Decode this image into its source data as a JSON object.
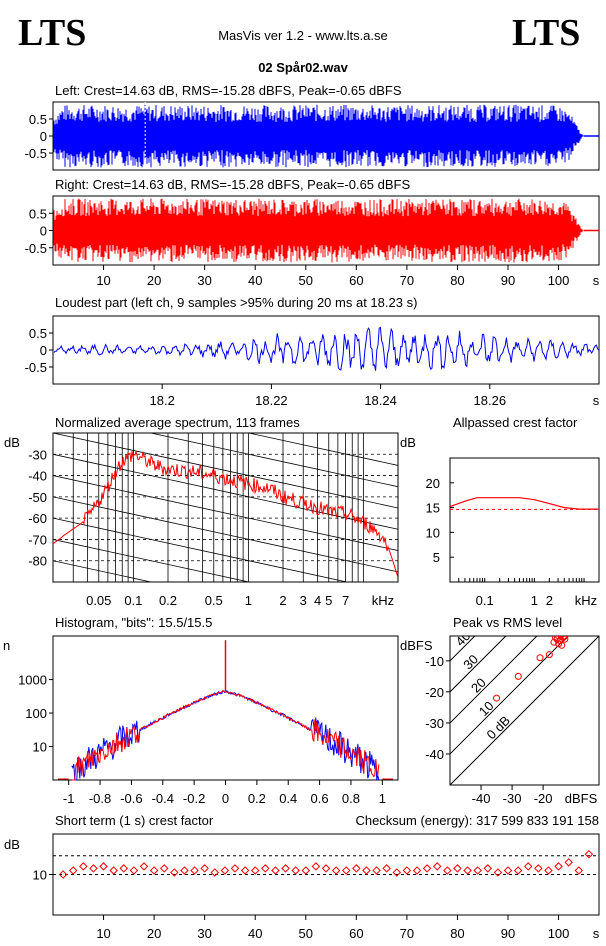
{
  "header": {
    "logo_left": "LTS",
    "logo_right": "LTS",
    "app_title": "MasVis ver 1.2 - www.lts.a.se",
    "file_title": "02 Spår02.wav"
  },
  "colors": {
    "left": "#0000ff",
    "right": "#ff0000",
    "background": "#ffffff",
    "axis": "#000000"
  },
  "chart_data": [
    {
      "id": "left",
      "type": "area",
      "title": "Left: Crest=14.63 dB, RMS=-15.28 dBFS, Peak=-0.65 dBFS",
      "ylim": [
        -1,
        1
      ],
      "y_ticks": [
        "0.5",
        "0",
        "-0.5"
      ],
      "y_tick_values": [
        0.5,
        0,
        -0.5
      ],
      "xlim": [
        0,
        108
      ],
      "envelope_x": [
        0,
        2,
        5,
        10,
        15,
        20,
        25,
        30,
        35,
        40,
        45,
        50,
        55,
        60,
        65,
        70,
        75,
        80,
        85,
        90,
        95,
        100,
        102,
        103.5,
        104.5,
        105
      ],
      "envelope_y": [
        0.6,
        0.92,
        0.93,
        0.93,
        0.92,
        0.93,
        0.92,
        0.92,
        0.93,
        0.92,
        0.92,
        0.92,
        0.93,
        0.92,
        0.91,
        0.92,
        0.92,
        0.92,
        0.92,
        0.93,
        0.92,
        0.9,
        0.75,
        0.35,
        0.08,
        0.0
      ],
      "marker_x": 18.23
    },
    {
      "id": "right",
      "type": "area",
      "title": "Right: Crest=14.63 dB, RMS=-15.28 dBFS, Peak=-0.65 dBFS",
      "ylim": [
        -1,
        1
      ],
      "y_ticks": [
        "0.5",
        "0",
        "-0.5"
      ],
      "y_tick_values": [
        0.5,
        0,
        -0.5
      ],
      "x_ticks": [
        "10",
        "20",
        "30",
        "40",
        "50",
        "60",
        "70",
        "80",
        "90",
        "100"
      ],
      "x_tick_values": [
        10,
        20,
        30,
        40,
        50,
        60,
        70,
        80,
        90,
        100
      ],
      "x_unit": "s",
      "xlim": [
        0,
        108
      ],
      "envelope_x": [
        0,
        2,
        5,
        10,
        15,
        20,
        25,
        30,
        35,
        40,
        45,
        50,
        55,
        60,
        65,
        70,
        75,
        80,
        85,
        90,
        95,
        100,
        102,
        103.5,
        104.5,
        105
      ],
      "envelope_y": [
        0.6,
        0.92,
        0.93,
        0.93,
        0.92,
        0.93,
        0.92,
        0.92,
        0.93,
        0.92,
        0.92,
        0.92,
        0.93,
        0.92,
        0.91,
        0.92,
        0.92,
        0.92,
        0.92,
        0.93,
        0.92,
        0.9,
        0.75,
        0.35,
        0.08,
        0.0
      ]
    },
    {
      "id": "loudest",
      "type": "line",
      "title": "Loudest part (left  ch, 9 samples >95% during 20 ms at 18.23 s)",
      "ylim": [
        -1,
        1
      ],
      "y_ticks": [
        "0.5",
        "0",
        "-0.5"
      ],
      "y_tick_values": [
        0.5,
        0,
        -0.5
      ],
      "xlim": [
        18.18,
        18.28
      ],
      "x_ticks": [
        "18.2",
        "18.22",
        "18.24",
        "18.26"
      ],
      "x_tick_values": [
        18.2,
        18.22,
        18.24,
        18.26
      ],
      "x_unit": "s",
      "x": [
        18.18,
        18.185,
        18.19,
        18.195,
        18.2,
        18.205,
        18.21,
        18.215,
        18.22,
        18.225,
        18.23,
        18.235,
        18.24,
        18.245,
        18.25,
        18.255,
        18.26,
        18.265,
        18.27,
        18.275,
        18.28
      ],
      "y": [
        0.05,
        -0.1,
        0.1,
        -0.05,
        0.1,
        -0.15,
        0.2,
        -0.3,
        0.45,
        -0.5,
        0.6,
        -0.7,
        0.75,
        -0.6,
        0.65,
        -0.55,
        0.55,
        -0.3,
        0.3,
        -0.2,
        0.1
      ]
    },
    {
      "id": "spectrum",
      "type": "line",
      "title": "Normalized average spectrum, 113 frames",
      "ylabel": "dB",
      "ylim": [
        -90,
        -20
      ],
      "y_ticks": [
        "-30",
        "-40",
        "-50",
        "-60",
        "-70",
        "-80"
      ],
      "y_tick_values": [
        -30,
        -40,
        -50,
        -60,
        -70,
        -80
      ],
      "x_scale": "log",
      "xlim": [
        0.02,
        20
      ],
      "x_ticks": [
        "0.05",
        "0.1",
        "0.2",
        "0.5",
        "1",
        "2",
        "3",
        "4",
        "5",
        "7"
      ],
      "x_tick_values": [
        0.05,
        0.1,
        0.2,
        0.5,
        1,
        2,
        3,
        4,
        5,
        7
      ],
      "x_unit": "kHz",
      "x": [
        0.02,
        0.025,
        0.03,
        0.04,
        0.05,
        0.06,
        0.07,
        0.08,
        0.1,
        0.12,
        0.15,
        0.2,
        0.3,
        0.5,
        0.7,
        1,
        1.5,
        2,
        3,
        4,
        5,
        7,
        10,
        13,
        16,
        20
      ],
      "y": [
        -72,
        -68,
        -65,
        -60,
        -52,
        -45,
        -38,
        -33,
        -30,
        -32,
        -35,
        -37,
        -38,
        -40,
        -42,
        -44,
        -46,
        -50,
        -53,
        -55,
        -57,
        -58,
        -62,
        -66,
        -72,
        -88
      ]
    },
    {
      "id": "allpass",
      "type": "line",
      "title": "Allpassed crest factor",
      "ylabel": "dB",
      "ylim": [
        0,
        25
      ],
      "y_ticks": [
        "20",
        "15",
        "10",
        "5"
      ],
      "y_tick_values": [
        20,
        15,
        10,
        5
      ],
      "x_scale": "log",
      "xlim": [
        0.02,
        20
      ],
      "x_ticks": [
        "0.1",
        "1",
        "2"
      ],
      "x_tick_values": [
        0.1,
        1,
        2
      ],
      "x_unit": "kHz",
      "x": [
        0.02,
        0.04,
        0.07,
        0.2,
        0.5,
        1,
        2,
        4,
        8,
        20
      ],
      "y": [
        15.2,
        16.3,
        17.0,
        17.0,
        17.0,
        16.6,
        15.8,
        15.0,
        14.7,
        14.7
      ],
      "reference": 14.63
    },
    {
      "id": "histogram",
      "type": "line",
      "title": "Histogram, \"bits\": 15.5/15.5",
      "ylabel": "n",
      "y_scale": "log",
      "ylim": [
        1,
        20000
      ],
      "y_ticks": [
        "1000",
        "100",
        "10"
      ],
      "y_tick_values": [
        1000,
        100,
        10
      ],
      "xlim": [
        -1.1,
        1.1
      ],
      "x_ticks": [
        "-1",
        "-0.8",
        "-0.6",
        "-0.4",
        "-0.2",
        "0",
        "0.2",
        "0.4",
        "0.6",
        "0.8",
        "1"
      ],
      "x_tick_values": [
        -1,
        -0.8,
        -0.6,
        -0.4,
        -0.2,
        0,
        0.2,
        0.4,
        0.6,
        0.8,
        1
      ],
      "x": [
        -1.0,
        -0.95,
        -0.9,
        -0.8,
        -0.7,
        -0.6,
        -0.5,
        -0.4,
        -0.3,
        -0.2,
        -0.1,
        0,
        0.1,
        0.2,
        0.3,
        0.4,
        0.5,
        0.6,
        0.7,
        0.8,
        0.9,
        0.95,
        1.0
      ],
      "y": [
        1,
        2,
        3,
        6,
        12,
        22,
        40,
        70,
        120,
        200,
        320,
        450,
        320,
        200,
        120,
        70,
        40,
        22,
        12,
        6,
        3,
        2,
        1
      ],
      "spike_y": 15000
    },
    {
      "id": "peak_rms",
      "type": "scatter",
      "title": "Peak vs RMS level",
      "ylabel": "dBFS",
      "ylim": [
        -50,
        -2
      ],
      "y_ticks": [
        "-10",
        "-20",
        "-30",
        "-40"
      ],
      "y_tick_values": [
        -10,
        -20,
        -30,
        -40
      ],
      "xlim": [
        -50,
        -2
      ],
      "x_ticks": [
        "-40",
        "-30",
        "-20"
      ],
      "x_tick_values": [
        -40,
        -30,
        -20
      ],
      "x_unit": "dBFS",
      "diagonal_labels": [
        "40",
        "30",
        "20",
        "10",
        "0 dB"
      ],
      "x": [
        -16,
        -15,
        -14,
        -13,
        -15.5,
        -14.5,
        -13.5,
        -16.5,
        -14,
        -15,
        -13,
        -18,
        -21,
        -28,
        -35
      ],
      "y": [
        -2.5,
        -2,
        -1.5,
        -2,
        -3,
        -3.5,
        -2.5,
        -4,
        -5,
        -4.5,
        -3,
        -8,
        -9,
        -15,
        -22
      ]
    },
    {
      "id": "short_crest",
      "type": "scatter",
      "title": "Short term (1 s) crest factor",
      "ylabel": "dB",
      "checksum_text": "Checksum (energy):  317 599 833 191 158",
      "ylim": [
        0,
        20
      ],
      "y_ticks": [
        "10"
      ],
      "y_tick_values": [
        10
      ],
      "dashed_levels": [
        10,
        14.63
      ],
      "xlim": [
        0,
        108
      ],
      "x_ticks": [
        "10",
        "20",
        "30",
        "40",
        "50",
        "60",
        "70",
        "80",
        "90",
        "100"
      ],
      "x_tick_values": [
        10,
        20,
        30,
        40,
        50,
        60,
        70,
        80,
        90,
        100
      ],
      "x_unit": "s",
      "x": [
        2,
        4,
        6,
        8,
        10,
        12,
        14,
        16,
        18,
        20,
        22,
        24,
        26,
        28,
        30,
        32,
        34,
        36,
        38,
        40,
        42,
        44,
        46,
        48,
        50,
        52,
        54,
        56,
        58,
        60,
        62,
        64,
        66,
        68,
        70,
        72,
        74,
        76,
        78,
        80,
        82,
        84,
        86,
        88,
        90,
        92,
        94,
        96,
        98,
        100,
        102,
        104,
        106
      ],
      "y": [
        10,
        11,
        12,
        11.5,
        12,
        11,
        11.5,
        11,
        12,
        11,
        11.5,
        10.5,
        11,
        11,
        11.5,
        10.5,
        11,
        11.5,
        11,
        11,
        11.5,
        11,
        11.5,
        11,
        11,
        12,
        11.5,
        11,
        11,
        11.5,
        11,
        11,
        11.5,
        10.5,
        11,
        11,
        11.5,
        12,
        11,
        11.5,
        11,
        11,
        11.5,
        10.5,
        11,
        11,
        12,
        11.5,
        11,
        12,
        13,
        11,
        15
      ]
    }
  ]
}
